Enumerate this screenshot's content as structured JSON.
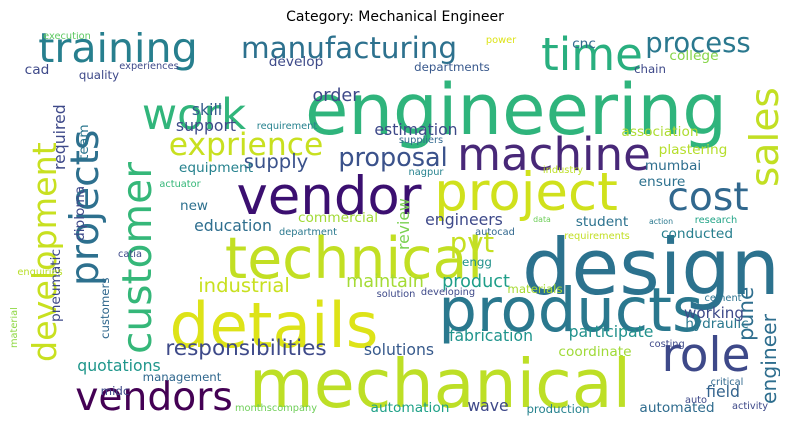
{
  "title": "Category: Mechanical Engineer",
  "words": [
    {
      "text": "engineering",
      "color": "#2fb47c"
    },
    {
      "text": "design",
      "color": "#2c728e"
    },
    {
      "text": "mechanical",
      "color": "#bddf26"
    },
    {
      "text": "technical",
      "color": "#c2df23"
    },
    {
      "text": "details",
      "color": "#dde318"
    },
    {
      "text": "products",
      "color": "#2a788e"
    },
    {
      "text": "customer",
      "color": "#35b779"
    },
    {
      "text": "vendor",
      "color": "#3b0f70"
    },
    {
      "text": "project",
      "color": "#d0e11c"
    },
    {
      "text": "development",
      "color": "#c8e020"
    },
    {
      "text": "projects",
      "color": "#2d708e"
    },
    {
      "text": "vendors",
      "color": "#440154"
    },
    {
      "text": "machine",
      "color": "#482878"
    },
    {
      "text": "cost",
      "color": "#31688e"
    },
    {
      "text": "training",
      "color": "#277f8e"
    },
    {
      "text": "time",
      "color": "#29af7f"
    },
    {
      "text": "work",
      "color": "#31b57b"
    },
    {
      "text": "sales",
      "color": "#c2df23"
    },
    {
      "text": "role",
      "color": "#3e4989"
    },
    {
      "text": "exprience",
      "color": "#c8e020"
    },
    {
      "text": "manufacturing",
      "color": "#2d718e"
    },
    {
      "text": "process",
      "color": "#2a788e"
    },
    {
      "text": "proposal",
      "color": "#3b528b"
    },
    {
      "text": "responsibilities",
      "color": "#3e4a89"
    },
    {
      "text": "pvt",
      "color": "#c5e021"
    },
    {
      "text": "industrial",
      "color": "#c8e020"
    },
    {
      "text": "maintain",
      "color": "#a5db36"
    },
    {
      "text": "product",
      "color": "#1f9e89"
    },
    {
      "text": "pune",
      "color": "#2e6e8e"
    },
    {
      "text": "supply",
      "color": "#3b528b"
    },
    {
      "text": "estimation",
      "color": "#3e4989"
    },
    {
      "text": "order",
      "color": "#3e4989"
    },
    {
      "text": "fabrication",
      "color": "#1f948c"
    },
    {
      "text": "participate",
      "color": "#21918c"
    },
    {
      "text": "working",
      "color": "#3e4a89"
    },
    {
      "text": "engineer",
      "color": "#2e6e8e"
    },
    {
      "text": "quotations",
      "color": "#1f968b"
    },
    {
      "text": "solutions",
      "color": "#375a8c"
    },
    {
      "text": "coordinate",
      "color": "#a0da39"
    },
    {
      "text": "automation",
      "color": "#1fa188"
    },
    {
      "text": "wave",
      "color": "#3e4989"
    },
    {
      "text": "automated",
      "color": "#2f6c8e"
    },
    {
      "text": "field",
      "color": "#33638d"
    },
    {
      "text": "hydraulic",
      "color": "#2a788e"
    },
    {
      "text": "conducted",
      "color": "#277f8e"
    },
    {
      "text": "engineers",
      "color": "#3e4989"
    },
    {
      "text": "student",
      "color": "#2c728e"
    },
    {
      "text": "ensure",
      "color": "#2d718e"
    },
    {
      "text": "commercial",
      "color": "#a2da37"
    },
    {
      "text": "education",
      "color": "#2e6e8e"
    },
    {
      "text": "new",
      "color": "#2d708e"
    },
    {
      "text": "equipment",
      "color": "#26828e"
    },
    {
      "text": "skill",
      "color": "#365c8d"
    },
    {
      "text": "support",
      "color": "#3e4a89"
    },
    {
      "text": "departments",
      "color": "#38588c"
    },
    {
      "text": "develop",
      "color": "#3e4a89"
    },
    {
      "text": "college",
      "color": "#86d549"
    },
    {
      "text": "chain",
      "color": "#3e4989"
    },
    {
      "text": "cnc",
      "color": "#31688e"
    },
    {
      "text": "association",
      "color": "#addc30"
    },
    {
      "text": "plastering",
      "color": "#b5de2b"
    },
    {
      "text": "mumbai",
      "color": "#2e6e8e"
    },
    {
      "text": "review",
      "color": "#7ad151"
    },
    {
      "text": "engg",
      "color": "#21918c"
    },
    {
      "text": "team",
      "color": "#2a768e"
    },
    {
      "text": "required",
      "color": "#3e4989"
    },
    {
      "text": "diploma",
      "color": "#3e4989"
    },
    {
      "text": "pneumatic",
      "color": "#3e4989"
    },
    {
      "text": "customers",
      "color": "#31688e"
    },
    {
      "text": "quality",
      "color": "#3e4989"
    },
    {
      "text": "cad",
      "color": "#3e4989"
    },
    {
      "text": "management",
      "color": "#31688e"
    },
    {
      "text": "midc",
      "color": "#3e4989"
    },
    {
      "text": "materials",
      "color": "#a8db34"
    },
    {
      "text": "monthscompany",
      "color": "#6ece58"
    },
    {
      "text": "production",
      "color": "#26828e"
    },
    {
      "text": "material",
      "color": "#8fd744"
    },
    {
      "text": "power",
      "color": "#dde318"
    },
    {
      "text": "experiences",
      "color": "#3e4989"
    },
    {
      "text": "execution",
      "color": "#5ec962"
    },
    {
      "text": "requirement",
      "color": "#26828e"
    },
    {
      "text": "suppliers",
      "color": "#31688e"
    },
    {
      "text": "nagpur",
      "color": "#26828e"
    },
    {
      "text": "industry",
      "color": "#bddf26"
    },
    {
      "text": "actuator",
      "color": "#35b779"
    },
    {
      "text": "department",
      "color": "#2a788e"
    },
    {
      "text": "autocad",
      "color": "#31688e"
    },
    {
      "text": "requirements",
      "color": "#c2df23"
    },
    {
      "text": "data",
      "color": "#6ece58"
    },
    {
      "text": "action",
      "color": "#2a788e"
    },
    {
      "text": "research",
      "color": "#20a386"
    },
    {
      "text": "enquiries",
      "color": "#b8de29"
    },
    {
      "text": "catia",
      "color": "#3e4989"
    },
    {
      "text": "solution",
      "color": "#3e4989"
    },
    {
      "text": "developing",
      "color": "#3e4989"
    },
    {
      "text": "costing",
      "color": "#3e4989"
    },
    {
      "text": "cement",
      "color": "#2c728e"
    },
    {
      "text": "critical",
      "color": "#31688e"
    },
    {
      "text": "auto",
      "color": "#3e4989"
    },
    {
      "text": "activity",
      "color": "#3e4989"
    }
  ]
}
